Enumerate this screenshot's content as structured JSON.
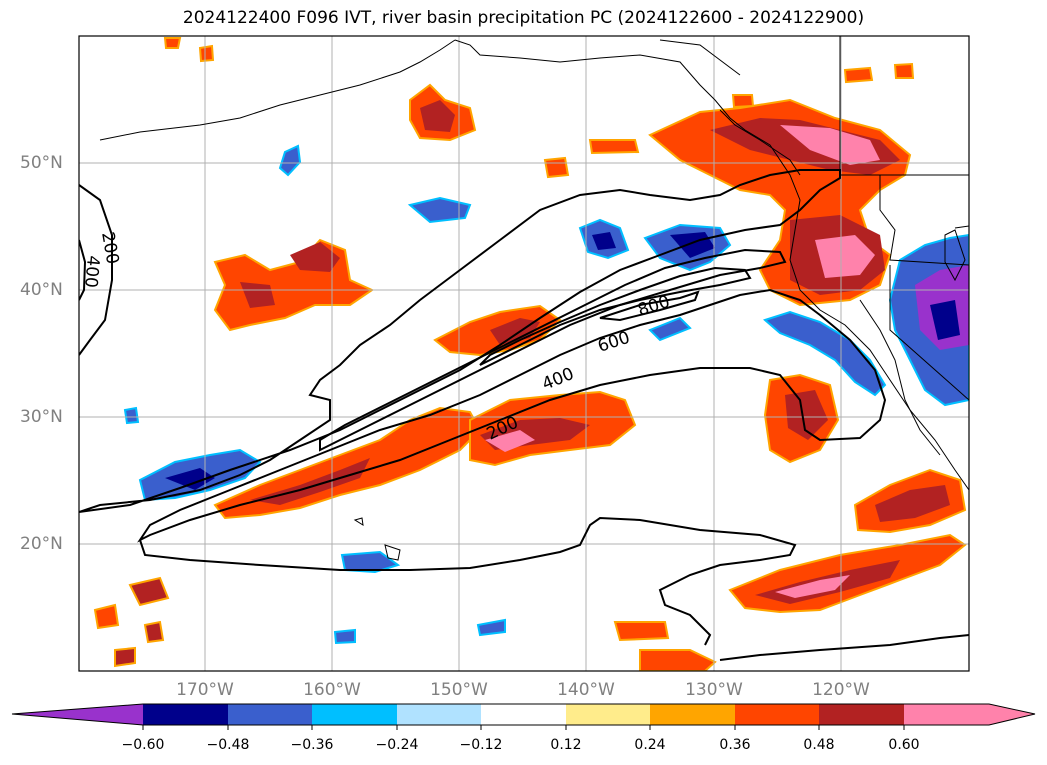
{
  "title": "2024122400 F096 IVT, river basin precipitation PC (2024122600 - 2024122900)",
  "axes": {
    "lat_labels": [
      "50°N",
      "40°N",
      "30°N",
      "20°N"
    ],
    "lon_labels": [
      "170°W",
      "160°W",
      "150°W",
      "140°W",
      "130°W",
      "120°W"
    ]
  },
  "contours": {
    "ivt_levels": [
      "200",
      "400",
      "600",
      "800"
    ],
    "left_labels": [
      "200",
      "400"
    ]
  },
  "colorbar": {
    "ticks": [
      "−0.60",
      "−0.48",
      "−0.36",
      "−0.24",
      "−0.12",
      "0.12",
      "0.24",
      "0.36",
      "0.48",
      "0.60"
    ],
    "colors": [
      "#9932cc",
      "#00008b",
      "#3a5fcd",
      "#00bfff",
      "#b0e2ff",
      "#ffffff",
      "#ffec8b",
      "#ffa500",
      "#ff4500",
      "#b22222",
      "#ff82ab"
    ]
  },
  "colors": {
    "frame": "#000000",
    "grid": "#b0b0b0",
    "coast": "#000000",
    "contour": "#000000"
  }
}
